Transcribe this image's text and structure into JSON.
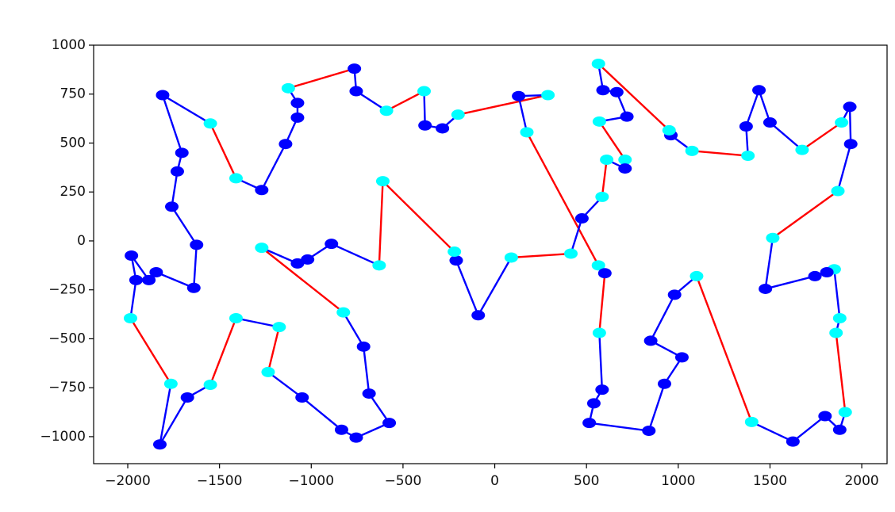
{
  "chart_data": {
    "type": "tour",
    "x": [
      -1810,
      -1550,
      -1410,
      -1270,
      -1140,
      -1075,
      -1075,
      -1125,
      -765,
      -755,
      -590,
      -385,
      -380,
      -285,
      -200,
      290,
      130,
      175,
      565,
      600,
      570,
      585,
      540,
      515,
      840,
      925,
      1020,
      850,
      980,
      1100,
      1400,
      1625,
      1800,
      1880,
      1910,
      1860,
      1880,
      1850,
      1810,
      1745,
      1475,
      1515,
      1870,
      1940,
      1935,
      1890,
      1675,
      1500,
      1440,
      1370,
      1380,
      1075,
      960,
      950,
      565,
      590,
      665,
      720,
      570,
      710,
      710,
      610,
      585,
      475,
      415,
      90,
      -90,
      -210,
      -220,
      -610,
      -630,
      -890,
      -1020,
      -1075,
      -1270,
      -825,
      -715,
      -685,
      -575,
      -755,
      -835,
      -1050,
      -1235,
      -1175,
      -1410,
      -1550,
      -1675,
      -1825,
      -1765,
      -1985,
      -1955,
      -1980,
      -1885,
      -1845,
      -1640,
      -1625,
      -1760,
      -1730,
      -1705
    ],
    "y": [
      745,
      600,
      320,
      260,
      495,
      630,
      705,
      780,
      880,
      765,
      665,
      765,
      590,
      575,
      645,
      745,
      740,
      555,
      -125,
      -165,
      -470,
      -760,
      -830,
      -930,
      -970,
      -730,
      -595,
      -510,
      -275,
      -180,
      -925,
      -1025,
      -895,
      -965,
      -875,
      -470,
      -395,
      -145,
      -160,
      -180,
      -245,
      15,
      255,
      495,
      685,
      605,
      465,
      605,
      770,
      585,
      435,
      460,
      540,
      565,
      905,
      770,
      760,
      635,
      610,
      415,
      370,
      415,
      225,
      115,
      -65,
      -85,
      -380,
      -100,
      -55,
      305,
      -125,
      -15,
      -95,
      -115,
      -35,
      -365,
      -540,
      -780,
      -930,
      -1005,
      -965,
      -800,
      -670,
      -440,
      -395,
      -735,
      -800,
      -1040,
      -730,
      -395,
      -200,
      -75,
      -200,
      -160,
      -240,
      -20,
      175,
      355,
      450
    ],
    "point_colors": [
      "blue",
      "cyan",
      "cyan",
      "blue",
      "blue",
      "blue",
      "blue",
      "cyan",
      "blue",
      "blue",
      "cyan",
      "cyan",
      "blue",
      "blue",
      "cyan",
      "cyan",
      "blue",
      "cyan",
      "cyan",
      "blue",
      "cyan",
      "blue",
      "blue",
      "blue",
      "blue",
      "blue",
      "blue",
      "blue",
      "blue",
      "cyan",
      "cyan",
      "blue",
      "blue",
      "blue",
      "cyan",
      "cyan",
      "cyan",
      "cyan",
      "blue",
      "blue",
      "blue",
      "cyan",
      "cyan",
      "blue",
      "blue",
      "cyan",
      "cyan",
      "blue",
      "blue",
      "blue",
      "cyan",
      "cyan",
      "blue",
      "cyan",
      "cyan",
      "blue",
      "blue",
      "blue",
      "cyan",
      "cyan",
      "blue",
      "cyan",
      "cyan",
      "blue",
      "cyan",
      "cyan",
      "blue",
      "blue",
      "cyan",
      "cyan",
      "cyan",
      "blue",
      "blue",
      "blue",
      "cyan",
      "cyan",
      "blue",
      "blue",
      "blue",
      "blue",
      "blue",
      "blue",
      "cyan",
      "cyan",
      "cyan",
      "cyan",
      "blue",
      "blue",
      "cyan",
      "cyan",
      "blue",
      "blue",
      "blue",
      "blue",
      "blue",
      "blue",
      "blue",
      "blue",
      "blue"
    ],
    "edge_colors": [
      "blue",
      "red",
      "blue",
      "blue",
      "blue",
      "blue",
      "blue",
      "red",
      "blue",
      "blue",
      "red",
      "blue",
      "blue",
      "blue",
      "red",
      "blue",
      "blue",
      "red",
      "blue",
      "red",
      "blue",
      "blue",
      "blue",
      "blue",
      "blue",
      "blue",
      "blue",
      "blue",
      "blue",
      "red",
      "blue",
      "blue",
      "blue",
      "blue",
      "red",
      "blue",
      "blue",
      "blue",
      "blue",
      "blue",
      "blue",
      "red",
      "blue",
      "blue",
      "blue",
      "red",
      "blue",
      "blue",
      "blue",
      "blue",
      "red",
      "blue",
      "blue",
      "red",
      "blue",
      "blue",
      "blue",
      "blue",
      "red",
      "blue",
      "blue",
      "red",
      "blue",
      "blue",
      "red",
      "blue",
      "blue",
      "blue",
      "red",
      "red",
      "blue",
      "blue",
      "blue",
      "blue",
      "red",
      "blue",
      "blue",
      "blue",
      "blue",
      "blue",
      "blue",
      "blue",
      "red",
      "blue",
      "red",
      "blue",
      "blue",
      "blue",
      "red",
      "blue",
      "blue",
      "blue",
      "blue",
      "blue",
      "blue",
      "blue",
      "blue",
      "blue",
      "blue"
    ],
    "xlim": [
      -2186,
      2138
    ],
    "ylim": [
      -1138,
      1000
    ],
    "xticks": [
      {
        "value": -2000,
        "label": "−2000"
      },
      {
        "value": -1500,
        "label": "−1500"
      },
      {
        "value": -1000,
        "label": "−1000"
      },
      {
        "value": -500,
        "label": "−500"
      },
      0,
      500,
      1000,
      1500,
      2000
    ],
    "yticks": [
      {
        "value": -1000,
        "label": "−1000"
      },
      {
        "value": -750,
        "label": "−750"
      },
      {
        "value": -500,
        "label": "−500"
      },
      {
        "value": -250,
        "label": "−250"
      },
      0,
      250,
      500,
      750,
      1000
    ]
  }
}
